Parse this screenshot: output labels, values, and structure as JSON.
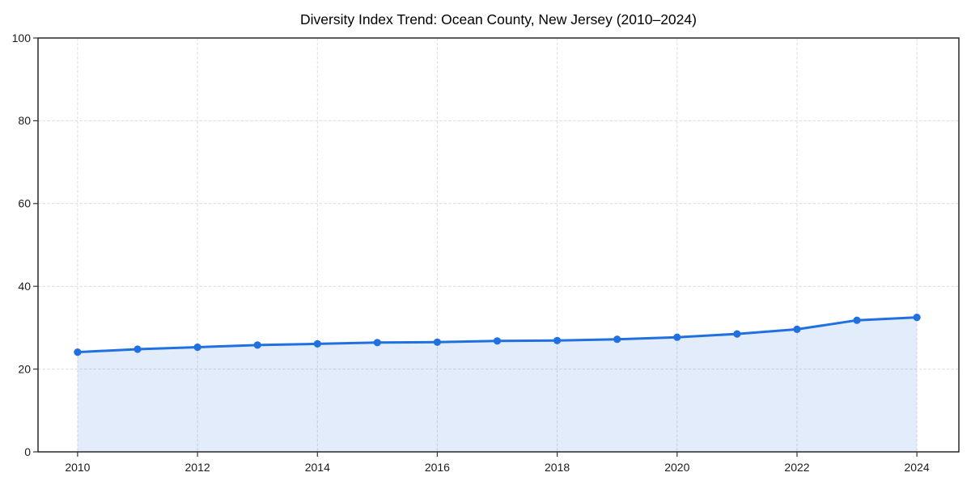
{
  "chart_data": {
    "type": "line",
    "title": "Diversity Index Trend: Ocean County, New Jersey (2010–2024)",
    "x": [
      2010,
      2011,
      2012,
      2013,
      2014,
      2015,
      2016,
      2017,
      2018,
      2019,
      2020,
      2021,
      2022,
      2023,
      2024
    ],
    "series": [
      {
        "name": "Diversity Index",
        "values": [
          24.1,
          24.8,
          25.3,
          25.8,
          26.1,
          26.4,
          26.5,
          26.8,
          26.9,
          27.2,
          27.7,
          28.5,
          29.6,
          31.8,
          32.5
        ],
        "color": "#2070e0",
        "marker": "circle",
        "marker_radius": 4.6,
        "line_width": 3
      }
    ],
    "area": {
      "enabled": true,
      "color": "rgba(32,112,224,0.13)"
    },
    "xlim": [
      2009.34,
      2024.7
    ],
    "ylim": [
      0,
      100
    ],
    "xticks": [
      2010,
      2012,
      2014,
      2016,
      2018,
      2020,
      2022,
      2024
    ],
    "yticks": [
      0,
      20,
      40,
      60,
      80,
      100
    ],
    "grid": {
      "enabled": true,
      "style": "dashed",
      "color": "#dcdcdc"
    },
    "legend": {
      "visible": false
    },
    "frame_color": "#1a1a1a",
    "tick_color": "#333333",
    "label_color": "#1a1a1a",
    "background": "#ffffff"
  }
}
